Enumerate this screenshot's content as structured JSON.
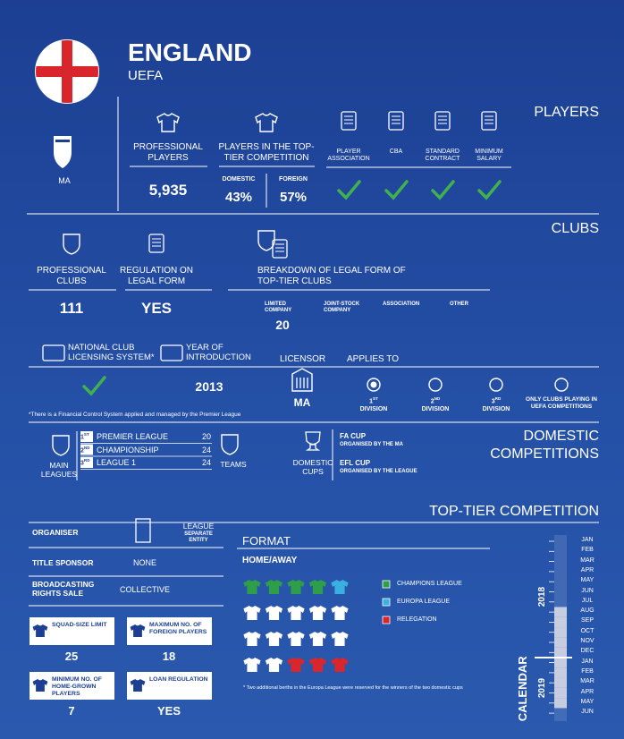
{
  "header": {
    "country": "ENGLAND",
    "confederation": "UEFA",
    "governing_body": "MA"
  },
  "players": {
    "title": "PLAYERS",
    "professional": {
      "label": "PROFESSIONAL PLAYERS",
      "value": "5,935"
    },
    "top_tier": {
      "label": "PLAYERS IN THE TOP-TIER COMPETITION",
      "domestic_label": "DOMESTIC",
      "domestic": "43%",
      "foreign_label": "FOREIGN",
      "foreign": "57%"
    },
    "checks": [
      {
        "label": "PLAYER ASSOCIATION",
        "checked": true
      },
      {
        "label": "CBA",
        "checked": true
      },
      {
        "label": "STANDARD CONTRACT",
        "checked": true
      },
      {
        "label": "MINIMUM SALARY",
        "checked": true
      }
    ]
  },
  "clubs": {
    "title": "CLUBS",
    "professional": {
      "label": "PROFESSIONAL CLUBS",
      "value": "111"
    },
    "regulation": {
      "label": "REGULATION ON LEGAL FORM",
      "value": "YES"
    },
    "breakdown": {
      "label": "BREAKDOWN OF LEGAL FORM OF TOP-TIER CLUBS",
      "forms": [
        {
          "label": "LIMITED COMPANY",
          "value": "20"
        },
        {
          "label": "JOINT-STOCK COMPANY"
        },
        {
          "label": "ASSOCIATION"
        },
        {
          "label": "OTHER"
        }
      ]
    },
    "licensing": {
      "system_label": "NATIONAL CLUB LICENSING SYSTEM*",
      "system": true,
      "year_label": "YEAR OF INTRODUCTION",
      "year": "2013",
      "licensor_label": "LICENSOR",
      "licensor": "MA",
      "applies_label": "APPLIES TO",
      "applies": [
        {
          "ordinal": "1",
          "suffix": "ST",
          "label": "DIVISION",
          "selected": true
        },
        {
          "ordinal": "2",
          "suffix": "ND",
          "label": "DIVISION",
          "selected": false
        },
        {
          "ordinal": "3",
          "suffix": "RD",
          "label": "DIVISION",
          "selected": false
        },
        {
          "label": "ONLY CLUBS PLAYING IN UEFA COMPETITIONS",
          "selected": false
        }
      ],
      "note": "*There is a Financial Control System applied and managed by the Premier League"
    }
  },
  "domestic": {
    "title": "DOMESTIC COMPETITIONS",
    "leagues_label": "MAIN LEAGUES",
    "leagues": [
      {
        "rank": "1",
        "suffix": "ST",
        "name": "PREMIER LEAGUE",
        "teams": "20"
      },
      {
        "rank": "2",
        "suffix": "ND",
        "name": "CHAMPIONSHIP",
        "teams": "24"
      },
      {
        "rank": "3",
        "suffix": "RD",
        "name": "LEAGUE 1",
        "teams": "24"
      }
    ],
    "teams_label": "TEAMS",
    "cups_label": "DOMESTIC CUPS",
    "cups": [
      {
        "name": "FA CUP",
        "organiser": "ORGANISED BY THE MA"
      },
      {
        "name": "EFL CUP",
        "organiser": "ORGANISED BY THE LEAGUE"
      }
    ]
  },
  "top_tier": {
    "title": "TOP-TIER COMPETITION",
    "rows": [
      {
        "label": "ORGANISER",
        "value": "LEAGUE",
        "note": "SEPARATE ENTITY"
      },
      {
        "label": "TITLE SPONSOR",
        "value": "NONE"
      },
      {
        "label": "BROADCASTING RIGHTS SALE",
        "value": "COLLECTIVE"
      }
    ],
    "boxes": [
      {
        "label": "SQUAD-SIZE LIMIT",
        "value": "25"
      },
      {
        "label": "MAXIMUM NO. OF FOREIGN PLAYERS",
        "value": "18"
      },
      {
        "label": "MINIMUM NO. OF HOME-GROWN PLAYERS",
        "value": "7"
      },
      {
        "label": "LOAN REGULATION",
        "value": "YES"
      }
    ],
    "format": {
      "title": "FORMAT",
      "system": "HOME/AWAY",
      "legend": [
        {
          "name": "CHAMPIONS LEAGUE",
          "color": "#2e9e48"
        },
        {
          "name": "EUROPA LEAGUE",
          "color": "#3ab0e0"
        },
        {
          "name": "RELEGATION",
          "color": "#d9262c"
        }
      ],
      "shirts": [
        "#2e9e48",
        "#2e9e48",
        "#2e9e48",
        "#2e9e48",
        "#3ab0e0",
        "#ffffff",
        "#ffffff",
        "#ffffff",
        "#ffffff",
        "#ffffff",
        "#ffffff",
        "#ffffff",
        "#ffffff",
        "#ffffff",
        "#ffffff",
        "#ffffff",
        "#ffffff",
        "#d9262c",
        "#d9262c",
        "#d9262c"
      ],
      "note": "* Two additional berths in the Europa League were reserved for the winners of the two domestic cups"
    },
    "calendar": {
      "title": "CALENDAR",
      "years": [
        {
          "label": "2018",
          "months": [
            {
              "label": "JAN",
              "season": false
            },
            {
              "label": "FEB",
              "season": false
            },
            {
              "label": "MAR",
              "season": false
            },
            {
              "label": "APR",
              "season": false
            },
            {
              "label": "MAY",
              "season": false
            },
            {
              "label": "JUN",
              "season": false
            },
            {
              "label": "JUL",
              "season": false
            },
            {
              "label": "AUG",
              "season": true
            },
            {
              "label": "SEP",
              "season": true
            },
            {
              "label": "OCT",
              "season": true
            },
            {
              "label": "NOV",
              "season": true
            },
            {
              "label": "DEC",
              "season": true
            }
          ]
        },
        {
          "label": "2019",
          "months": [
            {
              "label": "JAN",
              "season": true
            },
            {
              "label": "FEB",
              "season": true
            },
            {
              "label": "MAR",
              "season": true
            },
            {
              "label": "APR",
              "season": true
            },
            {
              "label": "MAY",
              "season": true
            },
            {
              "label": "JUN",
              "season": false
            }
          ]
        }
      ]
    }
  }
}
